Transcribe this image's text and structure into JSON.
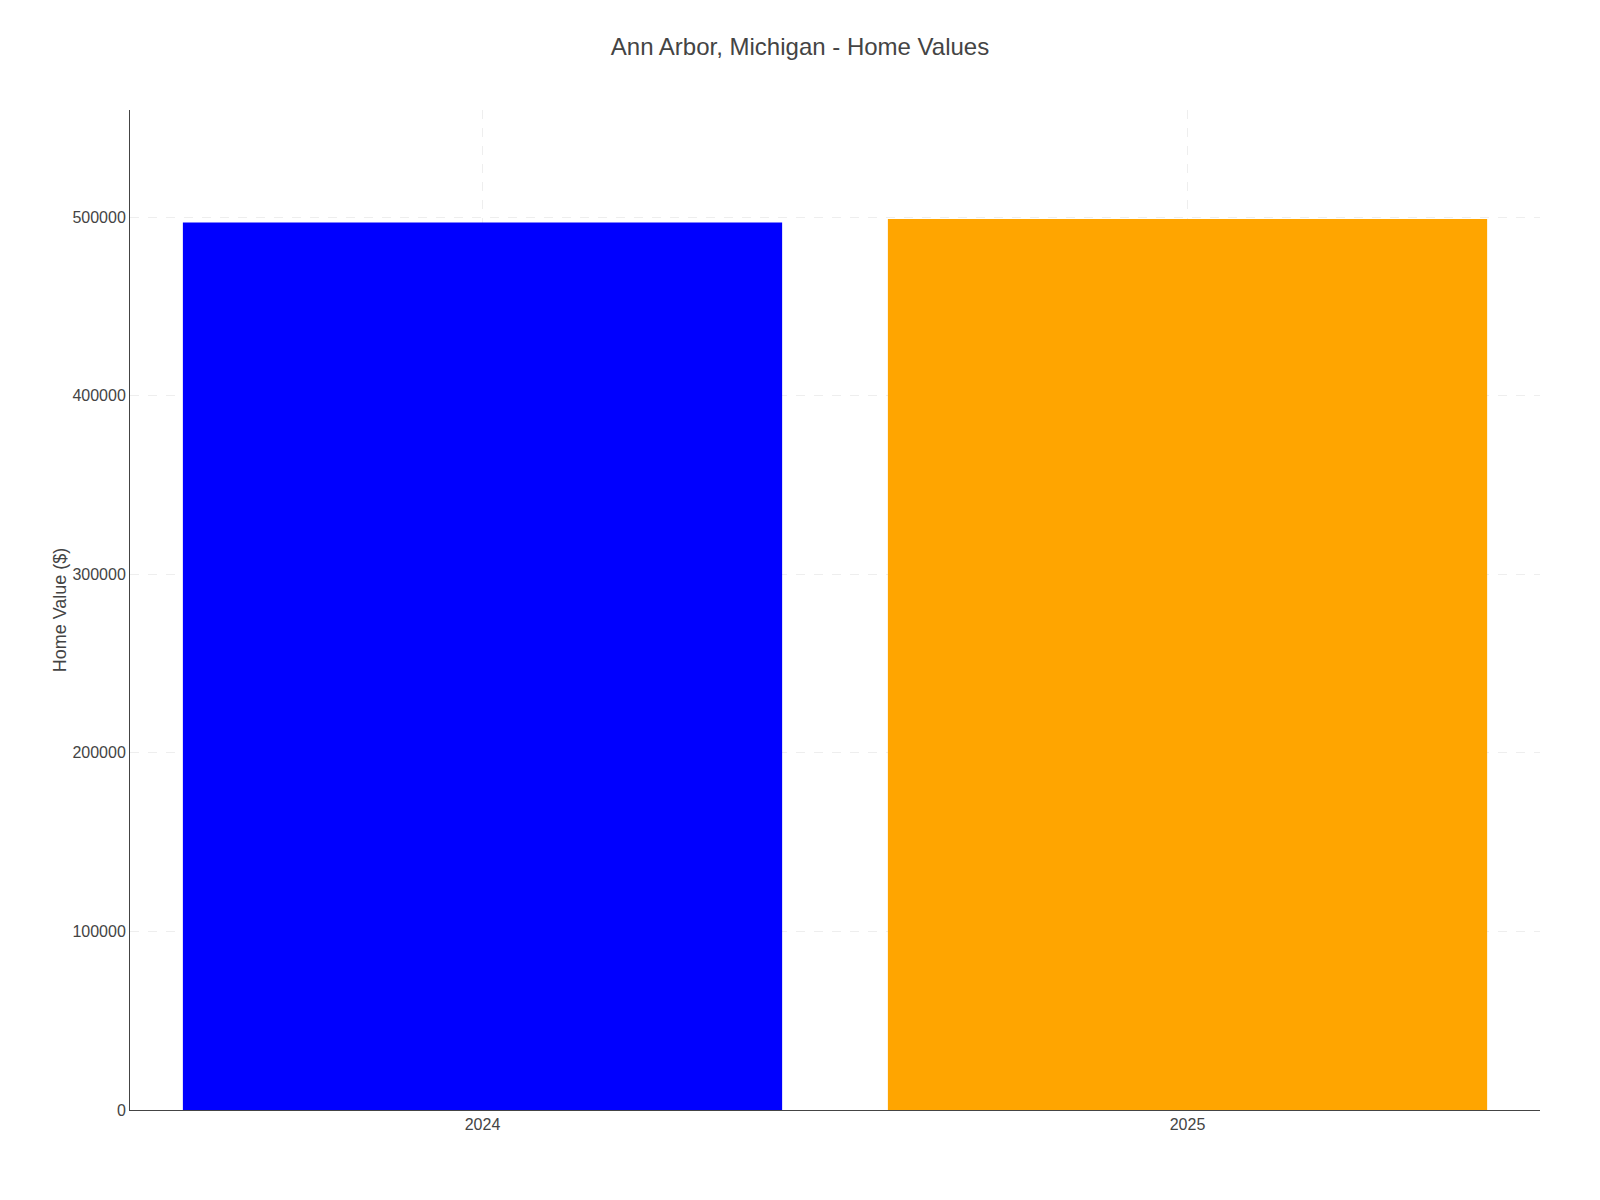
{
  "chart_data": {
    "type": "bar",
    "title": "Ann Arbor, Michigan - Home Values",
    "ylabel": "Home Value ($)",
    "categories": [
      "2024",
      "2025"
    ],
    "values": [
      497000,
      499000
    ],
    "colors": [
      "#0000ff",
      "#ffa500"
    ],
    "ylim": [
      0,
      560000
    ],
    "yticks": [
      0,
      100000,
      200000,
      300000,
      400000,
      500000
    ],
    "grid": true
  }
}
